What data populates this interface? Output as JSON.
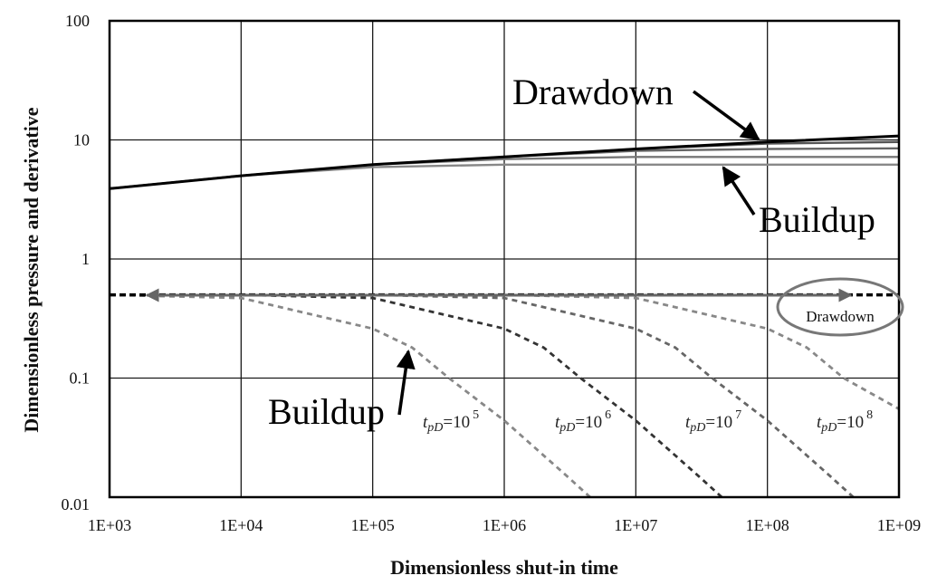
{
  "chart_data": {
    "type": "line",
    "scale": {
      "x": "log",
      "y": "log"
    },
    "xlabel": "Dimensionless shut-in time",
    "ylabel": "Dimensionless pressure and derivative",
    "xlim": [
      1000,
      1000000000
    ],
    "ylim": [
      0.01,
      100
    ],
    "grid": true,
    "x_ticks": [
      "1E+03",
      "1E+04",
      "1E+05",
      "1E+06",
      "1E+07",
      "1E+08",
      "1E+09"
    ],
    "y_ticks": [
      "100",
      "10",
      "1",
      "0.1",
      "0.01"
    ],
    "series": [
      {
        "name": "Drawdown pressure",
        "style": "solid",
        "color": "#000000",
        "x": [
          1000,
          10000,
          100000,
          1000000,
          10000000,
          100000000,
          1000000000
        ],
        "y": [
          3.9,
          5.0,
          6.2,
          7.2,
          8.4,
          9.6,
          10.8
        ]
      },
      {
        "name": "Buildup pressure tpD=10^8",
        "style": "solid",
        "color": "#555555",
        "x": [
          1000,
          10000,
          100000,
          1000000,
          10000000,
          100000000,
          1000000000
        ],
        "y": [
          3.9,
          5.0,
          6.2,
          7.2,
          8.4,
          9.3,
          9.6
        ]
      },
      {
        "name": "Buildup pressure tpD=10^7",
        "style": "solid",
        "color": "#666666",
        "x": [
          1000,
          10000,
          100000,
          1000000,
          10000000,
          100000000,
          1000000000
        ],
        "y": [
          3.9,
          5.0,
          6.2,
          7.2,
          8.1,
          8.4,
          8.5
        ]
      },
      {
        "name": "Buildup pressure tpD=10^6",
        "style": "solid",
        "color": "#777777",
        "x": [
          1000,
          10000,
          100000,
          1000000,
          10000000,
          100000000,
          1000000000
        ],
        "y": [
          3.9,
          5.0,
          6.2,
          6.9,
          7.2,
          7.2,
          7.2
        ]
      },
      {
        "name": "Buildup pressure tpD=10^5",
        "style": "solid",
        "color": "#888888",
        "x": [
          1000,
          10000,
          100000,
          1000000,
          10000000,
          100000000,
          1000000000
        ],
        "y": [
          3.9,
          5.0,
          5.9,
          6.2,
          6.2,
          6.2,
          6.2
        ]
      },
      {
        "name": "Drawdown derivative",
        "style": "dashed",
        "color": "#000000",
        "x": [
          1000,
          1000000000
        ],
        "y": [
          0.5,
          0.5
        ]
      },
      {
        "name": "Buildup derivative tpD=10^5",
        "style": "dashed",
        "color": "#888888",
        "x": [
          1000,
          10000,
          100000,
          200000,
          380000,
          1000000,
          3000000,
          4500000
        ],
        "y": [
          0.5,
          0.47,
          0.26,
          0.18,
          0.1,
          0.044,
          0.015,
          0.01
        ]
      },
      {
        "name": "Buildup derivative tpD=10^6",
        "style": "dashed",
        "color": "#333333",
        "x": [
          10000,
          100000,
          1000000,
          2000000,
          3800000,
          10000000,
          30000000,
          45000000
        ],
        "y": [
          0.5,
          0.47,
          0.26,
          0.18,
          0.1,
          0.044,
          0.015,
          0.01
        ]
      },
      {
        "name": "Buildup derivative tpD=10^7",
        "style": "dashed",
        "color": "#666666",
        "x": [
          100000,
          1000000,
          10000000,
          20000000,
          38000000,
          100000000,
          300000000,
          450000000
        ],
        "y": [
          0.5,
          0.47,
          0.26,
          0.18,
          0.1,
          0.044,
          0.015,
          0.01
        ]
      },
      {
        "name": "Buildup derivative tpD=10^8",
        "style": "dashed",
        "color": "#888888",
        "x": [
          1000000,
          10000000,
          100000000,
          200000000,
          380000000,
          1000000000
        ],
        "y": [
          0.5,
          0.47,
          0.26,
          0.18,
          0.1,
          0.055
        ]
      }
    ],
    "annotations": [
      {
        "text": "Drawdown",
        "near": "pressure curves, upper right",
        "arrow": true
      },
      {
        "text": "Buildup",
        "near": "pressure curves, below",
        "arrow": true
      },
      {
        "text": "Drawdown",
        "near": "derivative plateau 0.5, circled",
        "arrow": false
      },
      {
        "text": "Buildup",
        "near": "derivative curves, lower left",
        "arrow": true
      },
      {
        "text": "tpD=10^5"
      },
      {
        "text": "tpD=10^6"
      },
      {
        "text": "tpD=10^7"
      },
      {
        "text": "tpD=10^8"
      }
    ]
  },
  "labels": {
    "xlabel": "Dimensionless shut-in time",
    "ylabel": "Dimensionless pressure and derivative",
    "drawdown_top": "Drawdown",
    "buildup_top": "Buildup",
    "drawdown_circle": "Drawdown",
    "buildup_bottom": "Buildup",
    "tpd_prefix": "t",
    "tpd_sub": "pD",
    "tpd_eq": "=10",
    "tpd_exps": [
      "5",
      "6",
      "7",
      "8"
    ]
  },
  "colors": {
    "frame": "#000000",
    "grid": "#1a1a1a",
    "arrow_gray": "#666666",
    "ellipse": "#777777"
  }
}
